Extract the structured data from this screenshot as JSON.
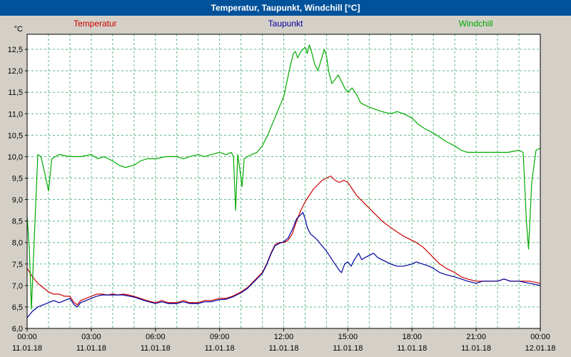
{
  "window": {
    "title": "Temperatur, Taupunkt, Windchill [°C]"
  },
  "colors": {
    "titlebar_bg": "#00529b",
    "titlebar_text": "#ffffff",
    "window_bg": "#d4d0c8",
    "plot_bg": "#ffffff",
    "plot_border": "#000000",
    "grid": "#58bb86",
    "axis_text": "#000000"
  },
  "legend": [
    {
      "label": "Temperatur",
      "color": "#cc0000"
    },
    {
      "label": "Taupunkt",
      "color": "#0000a0"
    },
    {
      "label": "Windchill",
      "color": "#00aa00"
    }
  ],
  "chart_data": {
    "type": "line",
    "title": "Temperatur, Taupunkt, Windchill [°C]",
    "ylabel": "°C",
    "xlabel": "",
    "ylim": [
      6.0,
      12.85
    ],
    "xlim_hours": [
      0,
      24
    ],
    "grid": {
      "style": "dashed",
      "color": "#58bb86",
      "x_minor_every_hours": 1,
      "y_every": 0.5
    },
    "yticks": [
      {
        "value": 6.0,
        "label": "6,0"
      },
      {
        "value": 6.5,
        "label": "6,5"
      },
      {
        "value": 7.0,
        "label": "7,0"
      },
      {
        "value": 7.5,
        "label": "7,5"
      },
      {
        "value": 8.0,
        "label": "8,0"
      },
      {
        "value": 8.5,
        "label": "8,5"
      },
      {
        "value": 9.0,
        "label": "9,0"
      },
      {
        "value": 9.5,
        "label": "9,5"
      },
      {
        "value": 10.0,
        "label": "10,0"
      },
      {
        "value": 10.5,
        "label": "10,5"
      },
      {
        "value": 11.0,
        "label": "11,0"
      },
      {
        "value": 11.5,
        "label": "11,5"
      },
      {
        "value": 12.0,
        "label": "12,0"
      },
      {
        "value": 12.5,
        "label": "12,5"
      }
    ],
    "x_major_ticks": [
      {
        "hour": 0,
        "time": "00:00",
        "date": "11.01.18"
      },
      {
        "hour": 3,
        "time": "03:00",
        "date": "11.01.18"
      },
      {
        "hour": 6,
        "time": "06:00",
        "date": "11.01.18"
      },
      {
        "hour": 9,
        "time": "09:00",
        "date": "11.01.18"
      },
      {
        "hour": 12,
        "time": "12:00",
        "date": "11.01.18"
      },
      {
        "hour": 15,
        "time": "15:00",
        "date": "11.01.18"
      },
      {
        "hour": 18,
        "time": "18:00",
        "date": "11.01.18"
      },
      {
        "hour": 21,
        "time": "21:00",
        "date": "11.01.18"
      },
      {
        "hour": 24,
        "time": "00:00",
        "date": "12.01.18"
      }
    ],
    "series": [
      {
        "name": "Temperatur",
        "color": "#cc0000",
        "points": [
          [
            0,
            7.4
          ],
          [
            0.25,
            7.2
          ],
          [
            0.5,
            7.05
          ],
          [
            0.75,
            6.95
          ],
          [
            1,
            6.85
          ],
          [
            1.25,
            6.8
          ],
          [
            1.5,
            6.8
          ],
          [
            1.75,
            6.75
          ],
          [
            2,
            6.75
          ],
          [
            2.2,
            6.6
          ],
          [
            2.35,
            6.55
          ],
          [
            2.5,
            6.65
          ],
          [
            2.75,
            6.7
          ],
          [
            3,
            6.75
          ],
          [
            3.25,
            6.8
          ],
          [
            3.5,
            6.8
          ],
          [
            3.75,
            6.78
          ],
          [
            4,
            6.8
          ],
          [
            4.25,
            6.78
          ],
          [
            4.5,
            6.8
          ],
          [
            4.75,
            6.78
          ],
          [
            5,
            6.75
          ],
          [
            5.3,
            6.7
          ],
          [
            5.6,
            6.65
          ],
          [
            6,
            6.6
          ],
          [
            6.3,
            6.65
          ],
          [
            6.6,
            6.6
          ],
          [
            7,
            6.6
          ],
          [
            7.3,
            6.65
          ],
          [
            7.6,
            6.6
          ],
          [
            8,
            6.6
          ],
          [
            8.3,
            6.65
          ],
          [
            8.6,
            6.65
          ],
          [
            9,
            6.7
          ],
          [
            9.3,
            6.7
          ],
          [
            9.6,
            6.75
          ],
          [
            10,
            6.85
          ],
          [
            10.3,
            6.95
          ],
          [
            10.6,
            7.1
          ],
          [
            11,
            7.3
          ],
          [
            11.2,
            7.5
          ],
          [
            11.4,
            7.75
          ],
          [
            11.6,
            7.95
          ],
          [
            11.8,
            8.0
          ],
          [
            12,
            8.0
          ],
          [
            12.2,
            8.05
          ],
          [
            12.4,
            8.2
          ],
          [
            12.6,
            8.5
          ],
          [
            12.8,
            8.75
          ],
          [
            13,
            8.95
          ],
          [
            13.2,
            9.1
          ],
          [
            13.4,
            9.25
          ],
          [
            13.6,
            9.35
          ],
          [
            13.8,
            9.45
          ],
          [
            14,
            9.5
          ],
          [
            14.2,
            9.55
          ],
          [
            14.4,
            9.45
          ],
          [
            14.6,
            9.4
          ],
          [
            14.8,
            9.45
          ],
          [
            15,
            9.4
          ],
          [
            15.2,
            9.25
          ],
          [
            15.4,
            9.1
          ],
          [
            15.6,
            9.0
          ],
          [
            15.8,
            8.9
          ],
          [
            16,
            8.8
          ],
          [
            16.3,
            8.65
          ],
          [
            16.6,
            8.5
          ],
          [
            17,
            8.35
          ],
          [
            17.3,
            8.25
          ],
          [
            17.6,
            8.15
          ],
          [
            18,
            8.05
          ],
          [
            18.2,
            8.0
          ],
          [
            18.5,
            7.9
          ],
          [
            18.8,
            7.75
          ],
          [
            19,
            7.65
          ],
          [
            19.3,
            7.5
          ],
          [
            19.6,
            7.4
          ],
          [
            20,
            7.3
          ],
          [
            20.3,
            7.2
          ],
          [
            20.6,
            7.15
          ],
          [
            21,
            7.1
          ],
          [
            21.5,
            7.1
          ],
          [
            22,
            7.1
          ],
          [
            22.3,
            7.15
          ],
          [
            22.6,
            7.1
          ],
          [
            23,
            7.1
          ],
          [
            23.5,
            7.1
          ],
          [
            24,
            7.05
          ]
        ]
      },
      {
        "name": "Taupunkt",
        "color": "#0000a0",
        "points": [
          [
            0,
            6.25
          ],
          [
            0.25,
            6.4
          ],
          [
            0.5,
            6.5
          ],
          [
            0.75,
            6.55
          ],
          [
            1,
            6.6
          ],
          [
            1.25,
            6.65
          ],
          [
            1.5,
            6.6
          ],
          [
            1.75,
            6.65
          ],
          [
            2,
            6.7
          ],
          [
            2.2,
            6.55
          ],
          [
            2.35,
            6.5
          ],
          [
            2.5,
            6.6
          ],
          [
            2.75,
            6.65
          ],
          [
            3,
            6.7
          ],
          [
            3.25,
            6.75
          ],
          [
            3.5,
            6.78
          ],
          [
            4,
            6.78
          ],
          [
            4.5,
            6.78
          ],
          [
            5,
            6.73
          ],
          [
            5.3,
            6.68
          ],
          [
            5.6,
            6.63
          ],
          [
            6,
            6.58
          ],
          [
            6.3,
            6.62
          ],
          [
            6.6,
            6.58
          ],
          [
            7,
            6.58
          ],
          [
            7.3,
            6.62
          ],
          [
            7.6,
            6.58
          ],
          [
            8,
            6.58
          ],
          [
            8.3,
            6.62
          ],
          [
            8.6,
            6.62
          ],
          [
            9,
            6.67
          ],
          [
            9.3,
            6.68
          ],
          [
            9.6,
            6.73
          ],
          [
            10,
            6.83
          ],
          [
            10.3,
            6.93
          ],
          [
            10.6,
            7.08
          ],
          [
            11,
            7.28
          ],
          [
            11.2,
            7.48
          ],
          [
            11.4,
            7.73
          ],
          [
            11.6,
            7.93
          ],
          [
            11.8,
            7.98
          ],
          [
            12,
            8.02
          ],
          [
            12.2,
            8.1
          ],
          [
            12.4,
            8.3
          ],
          [
            12.6,
            8.55
          ],
          [
            12.8,
            8.65
          ],
          [
            12.9,
            8.7
          ],
          [
            13,
            8.55
          ],
          [
            13.1,
            8.35
          ],
          [
            13.25,
            8.2
          ],
          [
            13.5,
            8.1
          ],
          [
            13.75,
            7.95
          ],
          [
            14,
            7.8
          ],
          [
            14.2,
            7.65
          ],
          [
            14.4,
            7.5
          ],
          [
            14.6,
            7.35
          ],
          [
            14.7,
            7.3
          ],
          [
            14.85,
            7.5
          ],
          [
            15,
            7.55
          ],
          [
            15.15,
            7.45
          ],
          [
            15.3,
            7.6
          ],
          [
            15.5,
            7.75
          ],
          [
            15.65,
            7.6
          ],
          [
            15.8,
            7.65
          ],
          [
            16,
            7.7
          ],
          [
            16.2,
            7.75
          ],
          [
            16.4,
            7.65
          ],
          [
            16.6,
            7.6
          ],
          [
            17,
            7.5
          ],
          [
            17.3,
            7.45
          ],
          [
            17.6,
            7.45
          ],
          [
            18,
            7.5
          ],
          [
            18.2,
            7.55
          ],
          [
            18.5,
            7.5
          ],
          [
            18.8,
            7.45
          ],
          [
            19,
            7.4
          ],
          [
            19.3,
            7.3
          ],
          [
            19.6,
            7.25
          ],
          [
            20,
            7.2
          ],
          [
            20.3,
            7.15
          ],
          [
            20.6,
            7.1
          ],
          [
            21,
            7.05
          ],
          [
            21.3,
            7.1
          ],
          [
            21.6,
            7.1
          ],
          [
            22,
            7.1
          ],
          [
            22.3,
            7.15
          ],
          [
            22.6,
            7.1
          ],
          [
            23,
            7.1
          ],
          [
            23.5,
            7.05
          ],
          [
            24,
            7.0
          ]
        ]
      },
      {
        "name": "Windchill",
        "color": "#00aa00",
        "points": [
          [
            0,
            8.6
          ],
          [
            0.1,
            7.9
          ],
          [
            0.2,
            6.45
          ],
          [
            0.35,
            8.3
          ],
          [
            0.5,
            10.05
          ],
          [
            0.65,
            10.0
          ],
          [
            0.85,
            9.55
          ],
          [
            1,
            9.2
          ],
          [
            1.15,
            9.95
          ],
          [
            1.5,
            10.05
          ],
          [
            2,
            10.0
          ],
          [
            2.5,
            10.0
          ],
          [
            3,
            10.05
          ],
          [
            3.3,
            9.95
          ],
          [
            3.6,
            10.0
          ],
          [
            4,
            9.9
          ],
          [
            4.3,
            9.8
          ],
          [
            4.6,
            9.75
          ],
          [
            5,
            9.8
          ],
          [
            5.3,
            9.9
          ],
          [
            5.6,
            9.95
          ],
          [
            6,
            9.95
          ],
          [
            6.5,
            10.0
          ],
          [
            7,
            10.0
          ],
          [
            7.3,
            9.95
          ],
          [
            7.6,
            10.0
          ],
          [
            8,
            10.05
          ],
          [
            8.3,
            10.0
          ],
          [
            8.6,
            10.05
          ],
          [
            9,
            10.1
          ],
          [
            9.3,
            10.05
          ],
          [
            9.55,
            10.1
          ],
          [
            9.65,
            10.0
          ],
          [
            9.75,
            8.75
          ],
          [
            9.85,
            10.05
          ],
          [
            9.95,
            9.7
          ],
          [
            10.05,
            9.3
          ],
          [
            10.15,
            9.95
          ],
          [
            10.3,
            10.0
          ],
          [
            10.5,
            10.05
          ],
          [
            10.75,
            10.1
          ],
          [
            11,
            10.25
          ],
          [
            11.25,
            10.5
          ],
          [
            11.5,
            10.8
          ],
          [
            11.75,
            11.1
          ],
          [
            12,
            11.4
          ],
          [
            12.15,
            11.75
          ],
          [
            12.3,
            12.1
          ],
          [
            12.45,
            12.4
          ],
          [
            12.55,
            12.45
          ],
          [
            12.65,
            12.3
          ],
          [
            12.8,
            12.45
          ],
          [
            12.9,
            12.5
          ],
          [
            13,
            12.55
          ],
          [
            13.1,
            12.4
          ],
          [
            13.2,
            12.6
          ],
          [
            13.3,
            12.45
          ],
          [
            13.45,
            12.15
          ],
          [
            13.6,
            12.0
          ],
          [
            13.75,
            12.25
          ],
          [
            13.9,
            12.5
          ],
          [
            14,
            12.35
          ],
          [
            14.1,
            12.0
          ],
          [
            14.25,
            11.7
          ],
          [
            14.4,
            11.8
          ],
          [
            14.55,
            11.9
          ],
          [
            14.7,
            11.75
          ],
          [
            14.85,
            11.6
          ],
          [
            15,
            11.5
          ],
          [
            15.2,
            11.6
          ],
          [
            15.4,
            11.45
          ],
          [
            15.6,
            11.25
          ],
          [
            15.8,
            11.2
          ],
          [
            16,
            11.15
          ],
          [
            16.3,
            11.1
          ],
          [
            16.6,
            11.05
          ],
          [
            17,
            11.0
          ],
          [
            17.3,
            11.05
          ],
          [
            17.6,
            11.0
          ],
          [
            18,
            10.9
          ],
          [
            18.3,
            10.75
          ],
          [
            18.6,
            10.65
          ],
          [
            19,
            10.55
          ],
          [
            19.3,
            10.45
          ],
          [
            19.6,
            10.35
          ],
          [
            20,
            10.25
          ],
          [
            20.3,
            10.15
          ],
          [
            20.6,
            10.1
          ],
          [
            21,
            10.1
          ],
          [
            21.5,
            10.1
          ],
          [
            22,
            10.1
          ],
          [
            22.5,
            10.1
          ],
          [
            23,
            10.15
          ],
          [
            23.2,
            10.1
          ],
          [
            23.35,
            8.5
          ],
          [
            23.45,
            7.85
          ],
          [
            23.6,
            9.4
          ],
          [
            23.8,
            10.15
          ],
          [
            24,
            10.2
          ]
        ]
      }
    ]
  }
}
